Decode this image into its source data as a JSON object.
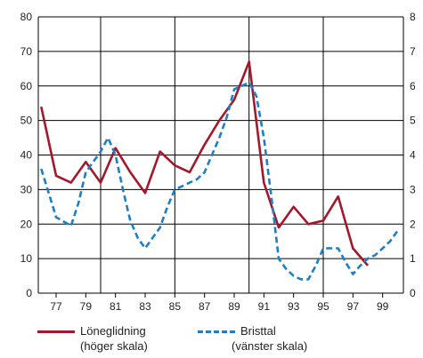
{
  "chart_data": {
    "type": "line",
    "xlabel": "",
    "ylabel": "",
    "x_tick_labels": [
      "77",
      "79",
      "81",
      "83",
      "85",
      "87",
      "89",
      "91",
      "93",
      "95",
      "97",
      "99"
    ],
    "x_ticks": [
      1977,
      1979,
      1981,
      1983,
      1985,
      1987,
      1989,
      1991,
      1993,
      1995,
      1997,
      1999
    ],
    "xlim": [
      1975.8,
      2000.4
    ],
    "vertical_gridlines": [
      1980,
      1985,
      1990,
      1995
    ],
    "grid": true,
    "left_axis": {
      "ylim": [
        0,
        80
      ],
      "ticks": [
        "0",
        "10",
        "20",
        "30",
        "40",
        "50",
        "60",
        "70",
        "80"
      ]
    },
    "right_axis": {
      "ylim": [
        0,
        8
      ],
      "ticks": [
        "0",
        "1",
        "2",
        "3",
        "4",
        "5",
        "6",
        "7",
        "8"
      ]
    },
    "legend_position": "bottom",
    "series": [
      {
        "name": "Löneglidning",
        "axis_note": "(höger skala)",
        "axis": "right",
        "color": "#a3182a",
        "style": "solid",
        "x": [
          1976,
          1977,
          1978,
          1979,
          1980,
          1981,
          1982,
          1983,
          1984,
          1985,
          1986,
          1987,
          1988,
          1989,
          1990,
          1991,
          1992,
          1993,
          1994,
          1995,
          1996,
          1997,
          1998,
          1999
        ],
        "values": [
          5.4,
          3.4,
          3.2,
          3.8,
          3.2,
          4.2,
          3.5,
          2.9,
          4.1,
          3.7,
          3.5,
          4.3,
          5.0,
          5.6,
          6.7,
          3.2,
          1.9,
          2.5,
          2.0,
          2.1,
          2.8,
          1.3,
          0.8,
          null
        ]
      },
      {
        "name": "Bristtal",
        "axis_note": "(vänster skala)",
        "axis": "left",
        "color": "#1f7fc4",
        "style": "dashed",
        "x": [
          1976,
          1976.5,
          1977,
          1978,
          1978.5,
          1979,
          1980,
          1980.5,
          1981,
          1981.5,
          1982,
          1982.5,
          1983,
          1983.5,
          1984,
          1984.5,
          1985,
          1985.5,
          1986,
          1986.5,
          1987,
          1987.5,
          1988,
          1988.5,
          1989,
          1989.5,
          1990,
          1990.5,
          1991,
          1991.5,
          1992,
          1992.5,
          1993,
          1993.5,
          1994,
          1994.5,
          1995,
          1995.5,
          1996,
          1996.5,
          1997,
          1997.5,
          1998,
          1998.5,
          1999,
          1999.5,
          2000
        ],
        "values": [
          36,
          29,
          22,
          19.5,
          26,
          35,
          41,
          45,
          40,
          30,
          21,
          16,
          13,
          16,
          19,
          25,
          30,
          31,
          32,
          33,
          35,
          40,
          45,
          51,
          59,
          60,
          61,
          57,
          45,
          28,
          10,
          7,
          5,
          4,
          4,
          8,
          13,
          13,
          13,
          9,
          5.5,
          8,
          10,
          11,
          13,
          15,
          18
        ]
      }
    ]
  }
}
